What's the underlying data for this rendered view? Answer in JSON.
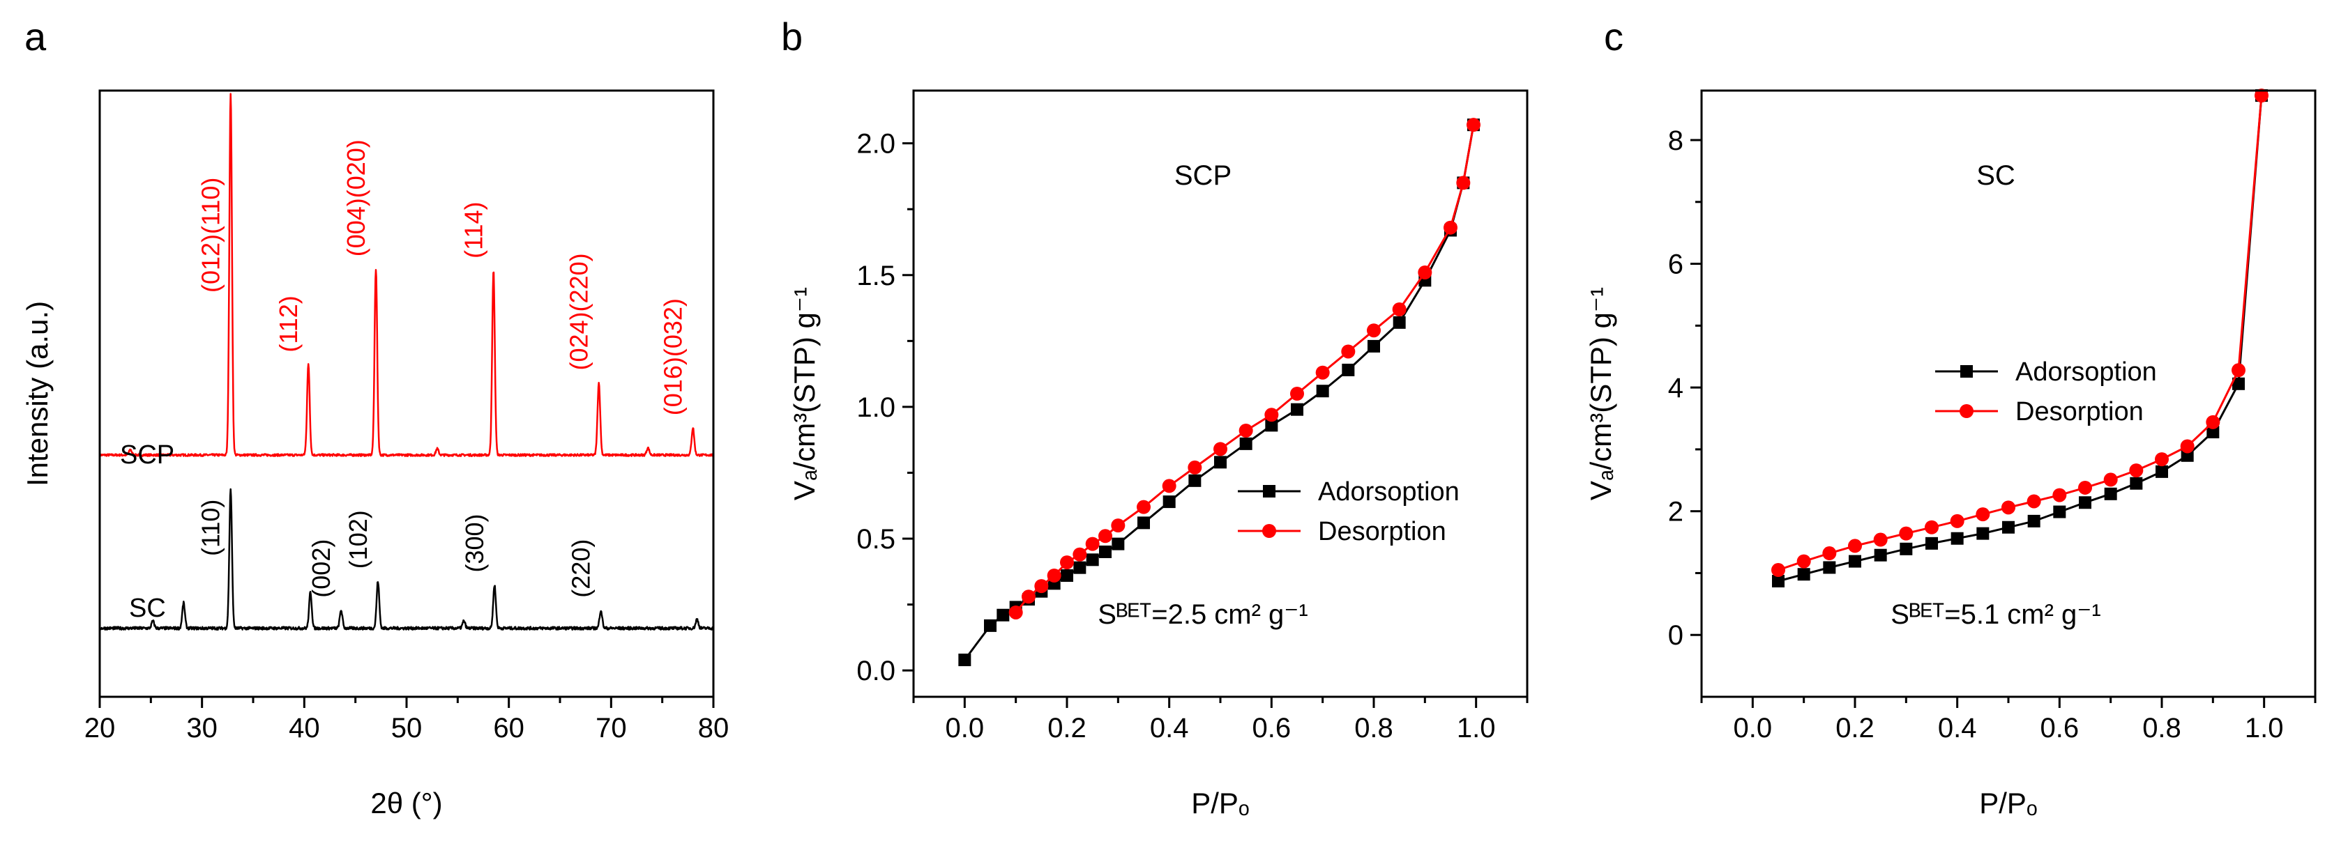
{
  "panels": [
    {
      "letter": "a"
    },
    {
      "letter": "b",
      "annotation": "SCP"
    },
    {
      "letter": "c",
      "annotation": "SC"
    }
  ],
  "chart_data": [
    {
      "id": "a",
      "type": "line",
      "xlabel": "2θ (°)",
      "ylabel": "Intensity (a.u.)",
      "xlim": [
        20,
        80
      ],
      "xticks": [
        20,
        30,
        40,
        50,
        60,
        70,
        80
      ],
      "yticks_shown": false,
      "colors": {
        "SCP": "#ff0000",
        "SC": "#000000"
      },
      "series": [
        {
          "name": "SCP",
          "baseline": 0.3,
          "noise": 0.006,
          "peaks": [
            [
              23.0,
              0.03
            ],
            [
              32.8,
              2.0
            ],
            [
              40.4,
              0.5
            ],
            [
              47.0,
              1.03
            ],
            [
              53.0,
              0.035
            ],
            [
              58.5,
              1.02
            ],
            [
              68.8,
              0.4
            ],
            [
              73.6,
              0.04
            ],
            [
              78.0,
              0.15
            ]
          ],
          "peak_labels": [
            {
              "x": 32.8,
              "text": "(012)(110)"
            },
            {
              "x": 40.4,
              "text": "(112)"
            },
            {
              "x": 47.0,
              "text": "(004)(020)"
            },
            {
              "x": 58.5,
              "text": "(114)"
            },
            {
              "x": 68.8,
              "text": "(024)(220)"
            },
            {
              "x": 78.0,
              "text": "(016)(032)"
            }
          ]
        },
        {
          "name": "SC",
          "baseline": -0.66,
          "noise": 0.008,
          "peaks": [
            [
              25.2,
              0.04
            ],
            [
              28.2,
              0.14
            ],
            [
              32.8,
              0.77
            ],
            [
              40.6,
              0.2
            ],
            [
              43.6,
              0.1
            ],
            [
              47.2,
              0.26
            ],
            [
              55.6,
              0.04
            ],
            [
              58.6,
              0.24
            ],
            [
              69.0,
              0.1
            ],
            [
              78.4,
              0.05
            ]
          ],
          "peak_labels": [
            {
              "x": 32.8,
              "text": "(110)"
            },
            {
              "x": 43.6,
              "text": "(002)"
            },
            {
              "x": 47.2,
              "text": "(102)"
            },
            {
              "x": 58.6,
              "text": "(300)"
            },
            {
              "x": 69.0,
              "text": "(220)"
            }
          ]
        }
      ]
    },
    {
      "id": "b",
      "type": "line",
      "xlabel": "P/Pₒ",
      "ylabel": "Vₐ/cm³(STP) g⁻¹",
      "xlim": [
        -0.1,
        1.1
      ],
      "ylim": [
        -0.1,
        2.2
      ],
      "xticks": [
        0.0,
        0.2,
        0.4,
        0.6,
        0.8,
        1.0
      ],
      "yticks": [
        0.0,
        0.5,
        1.0,
        1.5,
        2.0
      ],
      "legend_position": "middle-right",
      "note": "Sᴮᴱᵀ=2.5 cm² g⁻¹",
      "series": [
        {
          "name": "Adorsoption",
          "color": "#000000",
          "marker": "square",
          "x": [
            0.0,
            0.05,
            0.075,
            0.1,
            0.125,
            0.15,
            0.175,
            0.2,
            0.225,
            0.25,
            0.275,
            0.3,
            0.35,
            0.4,
            0.45,
            0.5,
            0.55,
            0.6,
            0.65,
            0.7,
            0.75,
            0.8,
            0.85,
            0.9,
            0.95,
            0.975,
            0.995
          ],
          "y": [
            0.04,
            0.17,
            0.21,
            0.24,
            0.27,
            0.3,
            0.33,
            0.36,
            0.39,
            0.42,
            0.45,
            0.48,
            0.56,
            0.64,
            0.72,
            0.79,
            0.86,
            0.93,
            0.99,
            1.06,
            1.14,
            1.23,
            1.32,
            1.48,
            1.67,
            1.85,
            2.07
          ]
        },
        {
          "name": "Desorption",
          "color": "#ff0000",
          "marker": "circle",
          "x": [
            0.995,
            0.975,
            0.95,
            0.9,
            0.85,
            0.8,
            0.75,
            0.7,
            0.65,
            0.6,
            0.55,
            0.5,
            0.45,
            0.4,
            0.35,
            0.3,
            0.275,
            0.25,
            0.225,
            0.2,
            0.175,
            0.15,
            0.125,
            0.1
          ],
          "y": [
            2.07,
            1.85,
            1.68,
            1.51,
            1.37,
            1.29,
            1.21,
            1.13,
            1.05,
            0.97,
            0.91,
            0.84,
            0.77,
            0.7,
            0.62,
            0.55,
            0.51,
            0.48,
            0.44,
            0.41,
            0.36,
            0.32,
            0.28,
            0.22
          ]
        }
      ]
    },
    {
      "id": "c",
      "type": "line",
      "xlabel": "P/Pₒ",
      "ylabel": "Vₐ/cm³(STP) g⁻¹",
      "xlim": [
        -0.1,
        1.1
      ],
      "ylim": [
        -1,
        8.8
      ],
      "xticks": [
        0.0,
        0.2,
        0.4,
        0.6,
        0.8,
        1.0
      ],
      "yticks": [
        0,
        2,
        4,
        6,
        8
      ],
      "legend_position": "middle-right",
      "note": "Sᴮᴱᵀ=5.1 cm² g⁻¹",
      "series": [
        {
          "name": "Adorsoption",
          "color": "#000000",
          "marker": "square",
          "x": [
            0.05,
            0.1,
            0.15,
            0.2,
            0.25,
            0.3,
            0.35,
            0.4,
            0.45,
            0.5,
            0.55,
            0.6,
            0.65,
            0.7,
            0.75,
            0.8,
            0.85,
            0.9,
            0.95,
            0.995
          ],
          "y": [
            0.87,
            0.98,
            1.09,
            1.19,
            1.29,
            1.39,
            1.48,
            1.56,
            1.64,
            1.74,
            1.84,
            1.99,
            2.14,
            2.28,
            2.45,
            2.64,
            2.9,
            3.28,
            4.06,
            8.72
          ]
        },
        {
          "name": "Desorption",
          "color": "#ff0000",
          "marker": "circle",
          "x": [
            0.995,
            0.95,
            0.9,
            0.85,
            0.8,
            0.75,
            0.7,
            0.65,
            0.6,
            0.55,
            0.5,
            0.45,
            0.4,
            0.35,
            0.3,
            0.25,
            0.2,
            0.15,
            0.1,
            0.05
          ],
          "y": [
            8.72,
            4.28,
            3.44,
            3.05,
            2.84,
            2.66,
            2.51,
            2.38,
            2.26,
            2.16,
            2.06,
            1.95,
            1.84,
            1.74,
            1.64,
            1.54,
            1.44,
            1.32,
            1.19,
            1.05
          ]
        }
      ]
    }
  ]
}
